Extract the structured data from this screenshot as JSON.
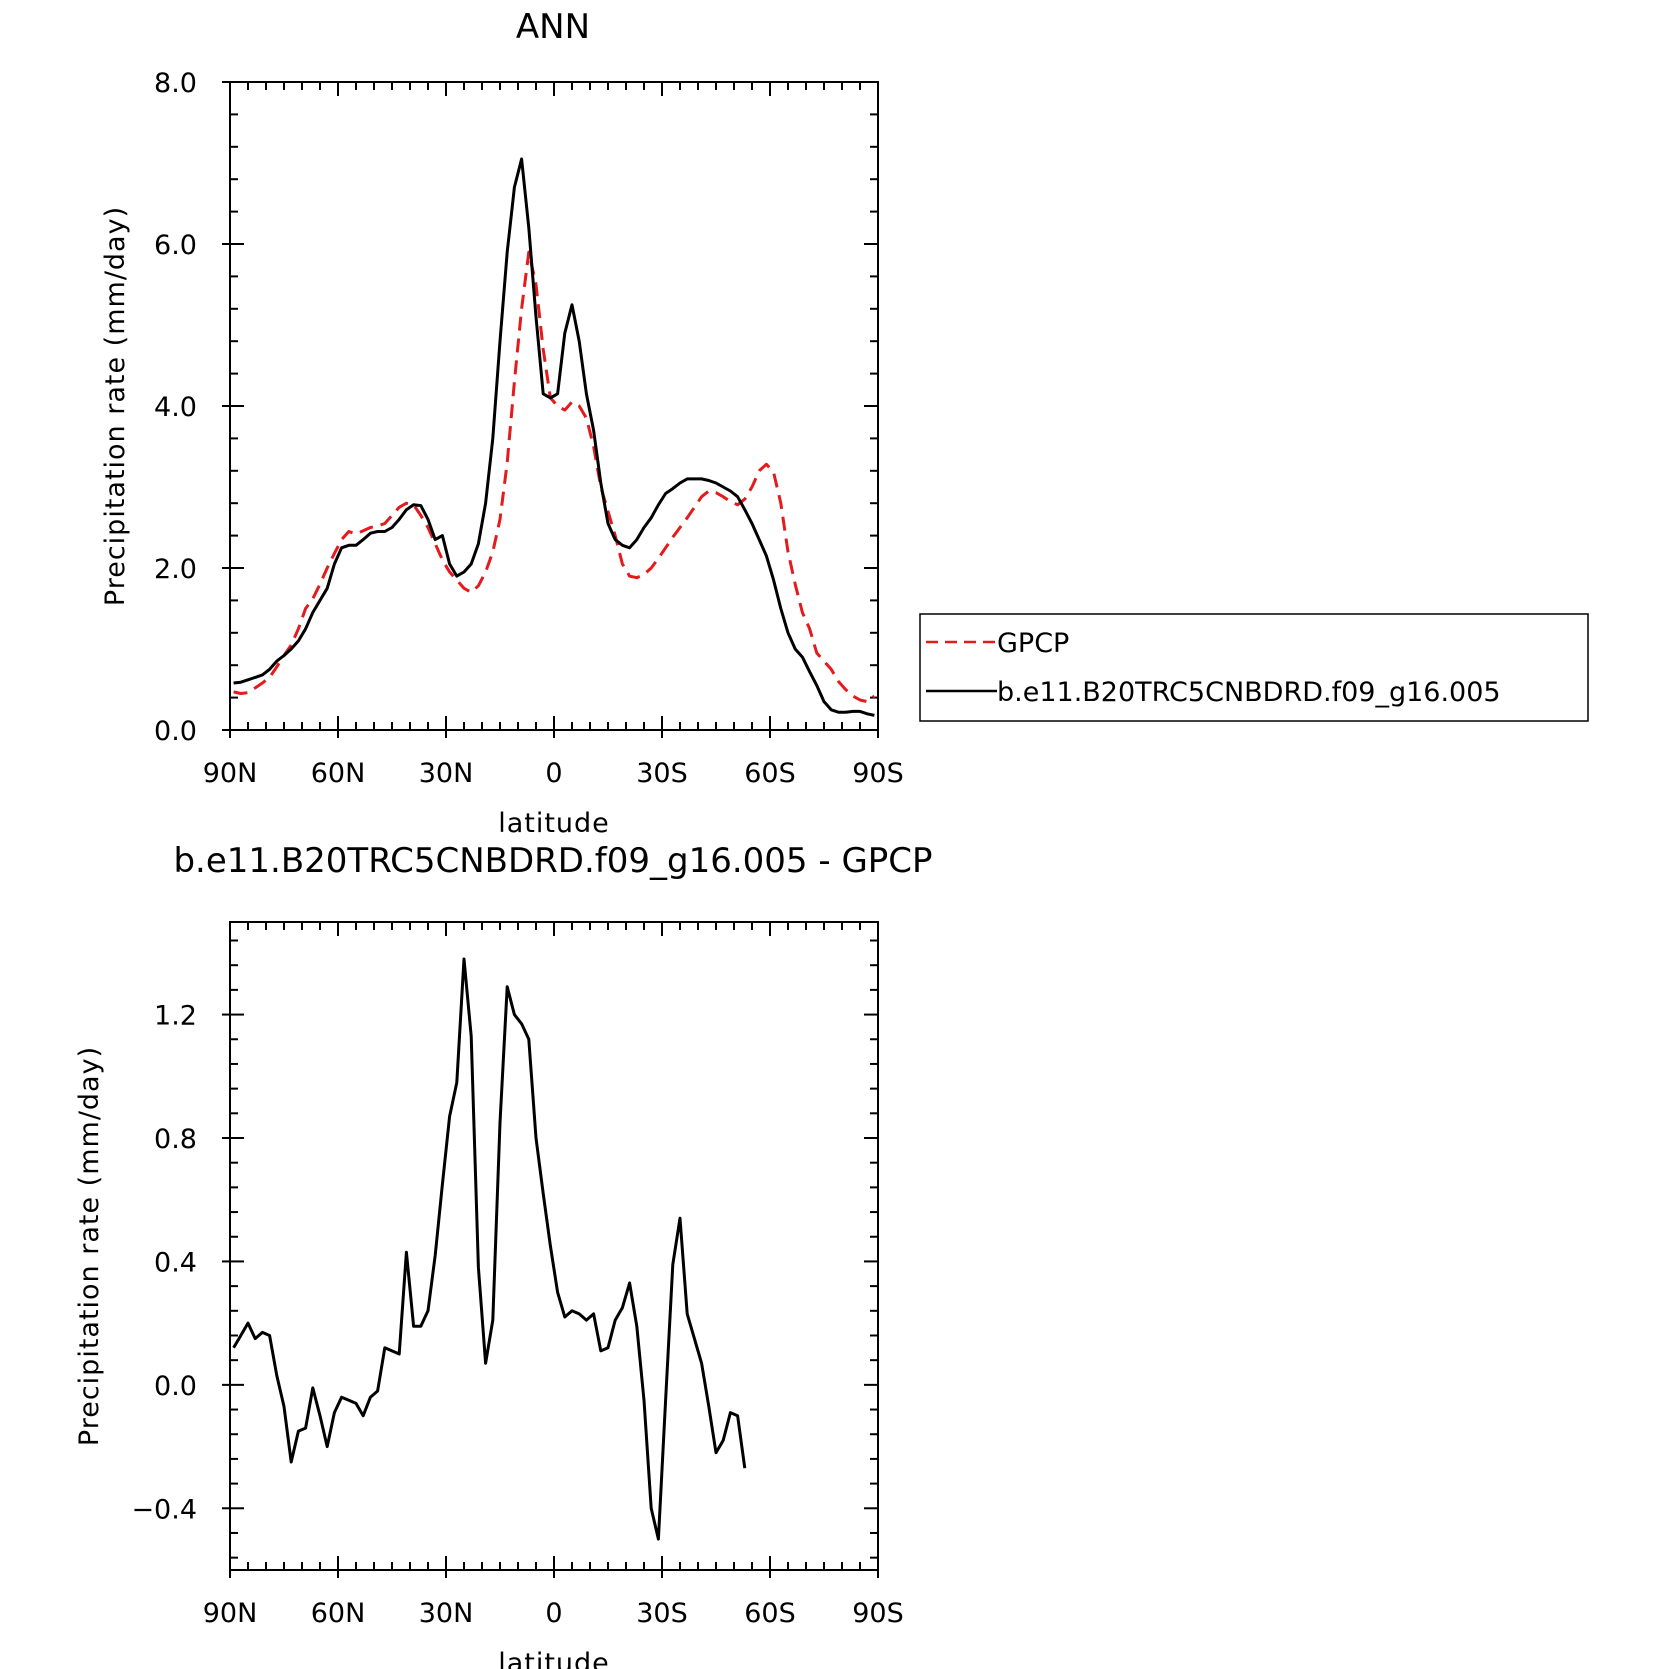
{
  "chart_data": [
    {
      "type": "line",
      "title": "ANN",
      "xlabel": "latitude",
      "ylabel": "Precipitation rate (mm/day)",
      "xlim": [
        90,
        -90
      ],
      "ylim": [
        0,
        8
      ],
      "x_ticks": [
        90,
        60,
        30,
        0,
        -30,
        -60,
        -90
      ],
      "x_tick_labels": [
        "90N",
        "60N",
        "30N",
        "0",
        "30S",
        "60S",
        "90S"
      ],
      "y_ticks": [
        0,
        2,
        4,
        6,
        8
      ],
      "y_tick_labels": [
        "0.0",
        "2.0",
        "4.0",
        "6.0",
        "8.0"
      ],
      "legend_position": "right",
      "series": [
        {
          "name": "GPCP",
          "color": "#e41a1c",
          "style": "dashed",
          "points": [
            [
              89,
              0.47
            ],
            [
              87,
              0.45
            ],
            [
              85,
              0.46
            ],
            [
              83,
              0.52
            ],
            [
              81,
              0.58
            ],
            [
              79,
              0.65
            ],
            [
              77,
              0.78
            ],
            [
              75,
              0.92
            ],
            [
              73,
              1.05
            ],
            [
              71,
              1.25
            ],
            [
              69,
              1.5
            ],
            [
              67,
              1.62
            ],
            [
              65,
              1.8
            ],
            [
              63,
              2.0
            ],
            [
              61,
              2.18
            ],
            [
              59,
              2.35
            ],
            [
              57,
              2.45
            ],
            [
              55,
              2.42
            ],
            [
              53,
              2.46
            ],
            [
              51,
              2.5
            ],
            [
              49,
              2.52
            ],
            [
              47,
              2.55
            ],
            [
              45,
              2.65
            ],
            [
              43,
              2.75
            ],
            [
              41,
              2.8
            ],
            [
              39,
              2.78
            ],
            [
              37,
              2.65
            ],
            [
              35,
              2.5
            ],
            [
              33,
              2.3
            ],
            [
              31,
              2.1
            ],
            [
              29,
              1.95
            ],
            [
              27,
              1.85
            ],
            [
              25,
              1.75
            ],
            [
              23,
              1.7
            ],
            [
              21,
              1.78
            ],
            [
              19,
              1.95
            ],
            [
              17,
              2.2
            ],
            [
              15,
              2.6
            ],
            [
              13,
              3.3
            ],
            [
              11,
              4.3
            ],
            [
              9,
              5.2
            ],
            [
              7,
              5.9
            ],
            [
              5,
              5.5
            ],
            [
              3,
              4.7
            ],
            [
              1,
              4.1
            ],
            [
              -1,
              4.0
            ],
            [
              -3,
              3.95
            ],
            [
              -5,
              4.05
            ],
            [
              -7,
              4.0
            ],
            [
              -9,
              3.85
            ],
            [
              -11,
              3.5
            ],
            [
              -13,
              3.0
            ],
            [
              -15,
              2.7
            ],
            [
              -17,
              2.4
            ],
            [
              -19,
              2.05
            ],
            [
              -21,
              1.9
            ],
            [
              -23,
              1.88
            ],
            [
              -25,
              1.92
            ],
            [
              -27,
              2.0
            ],
            [
              -29,
              2.12
            ],
            [
              -31,
              2.25
            ],
            [
              -33,
              2.38
            ],
            [
              -35,
              2.5
            ],
            [
              -37,
              2.62
            ],
            [
              -39,
              2.75
            ],
            [
              -41,
              2.88
            ],
            [
              -43,
              2.95
            ],
            [
              -45,
              2.93
            ],
            [
              -47,
              2.88
            ],
            [
              -49,
              2.82
            ],
            [
              -51,
              2.78
            ],
            [
              -53,
              2.85
            ],
            [
              -55,
              3.0
            ],
            [
              -57,
              3.2
            ],
            [
              -59,
              3.28
            ],
            [
              -61,
              3.18
            ],
            [
              -63,
              2.8
            ],
            [
              -65,
              2.2
            ],
            [
              -67,
              1.8
            ],
            [
              -69,
              1.45
            ],
            [
              -71,
              1.25
            ],
            [
              -73,
              0.95
            ],
            [
              -75,
              0.85
            ],
            [
              -77,
              0.75
            ],
            [
              -79,
              0.6
            ],
            [
              -81,
              0.5
            ],
            [
              -83,
              0.42
            ],
            [
              -85,
              0.37
            ],
            [
              -87,
              0.35
            ],
            [
              -89,
              0.42
            ]
          ]
        },
        {
          "name": "b.e11.B20TRC5CNBDRD.f09_g16.005",
          "color": "#000000",
          "style": "solid",
          "points": [
            [
              89,
              0.58
            ],
            [
              87,
              0.59
            ],
            [
              85,
              0.62
            ],
            [
              83,
              0.65
            ],
            [
              81,
              0.68
            ],
            [
              79,
              0.75
            ],
            [
              77,
              0.85
            ],
            [
              75,
              0.92
            ],
            [
              73,
              1.0
            ],
            [
              71,
              1.1
            ],
            [
              69,
              1.25
            ],
            [
              67,
              1.45
            ],
            [
              65,
              1.6
            ],
            [
              63,
              1.75
            ],
            [
              61,
              2.05
            ],
            [
              59,
              2.25
            ],
            [
              57,
              2.28
            ],
            [
              55,
              2.28
            ],
            [
              53,
              2.35
            ],
            [
              51,
              2.43
            ],
            [
              49,
              2.45
            ],
            [
              47,
              2.45
            ],
            [
              45,
              2.5
            ],
            [
              43,
              2.6
            ],
            [
              41,
              2.72
            ],
            [
              39,
              2.78
            ],
            [
              37,
              2.77
            ],
            [
              35,
              2.6
            ],
            [
              33,
              2.35
            ],
            [
              31,
              2.4
            ],
            [
              29,
              2.05
            ],
            [
              27,
              1.9
            ],
            [
              25,
              1.95
            ],
            [
              23,
              2.05
            ],
            [
              21,
              2.3
            ],
            [
              19,
              2.8
            ],
            [
              17,
              3.6
            ],
            [
              15,
              4.8
            ],
            [
              13,
              5.9
            ],
            [
              11,
              6.7
            ],
            [
              9,
              7.05
            ],
            [
              7,
              6.2
            ],
            [
              5,
              5.1
            ],
            [
              3,
              4.15
            ],
            [
              1,
              4.1
            ],
            [
              -1,
              4.15
            ],
            [
              -3,
              4.9
            ],
            [
              -5,
              5.25
            ],
            [
              -7,
              4.8
            ],
            [
              -9,
              4.15
            ],
            [
              -11,
              3.7
            ],
            [
              -13,
              3.05
            ],
            [
              -15,
              2.55
            ],
            [
              -17,
              2.35
            ],
            [
              -19,
              2.28
            ],
            [
              -21,
              2.25
            ],
            [
              -23,
              2.35
            ],
            [
              -25,
              2.5
            ],
            [
              -27,
              2.62
            ],
            [
              -29,
              2.78
            ],
            [
              -31,
              2.92
            ],
            [
              -33,
              2.98
            ],
            [
              -35,
              3.05
            ],
            [
              -37,
              3.1
            ],
            [
              -39,
              3.1
            ],
            [
              -41,
              3.1
            ],
            [
              -43,
              3.08
            ],
            [
              -45,
              3.05
            ],
            [
              -47,
              3.0
            ],
            [
              -49,
              2.95
            ],
            [
              -51,
              2.88
            ],
            [
              -53,
              2.72
            ],
            [
              -55,
              2.55
            ],
            [
              -57,
              2.35
            ],
            [
              -59,
              2.15
            ],
            [
              -61,
              1.85
            ],
            [
              -63,
              1.5
            ],
            [
              -65,
              1.2
            ],
            [
              -67,
              1.0
            ],
            [
              -69,
              0.9
            ],
            [
              -71,
              0.72
            ],
            [
              -73,
              0.55
            ],
            [
              -75,
              0.35
            ],
            [
              -77,
              0.25
            ],
            [
              -79,
              0.22
            ],
            [
              -81,
              0.22
            ],
            [
              -83,
              0.23
            ],
            [
              -85,
              0.23
            ],
            [
              -87,
              0.2
            ],
            [
              -89,
              0.18
            ]
          ]
        }
      ]
    },
    {
      "type": "line",
      "title": "b.e11.B20TRC5CNBDRD.f09_g16.005 - GPCP",
      "xlabel": "latitude",
      "ylabel": "Precipitation rate (mm/day)",
      "xlim": [
        90,
        -90
      ],
      "ylim": [
        -0.6,
        1.5
      ],
      "x_ticks": [
        90,
        60,
        30,
        0,
        -30,
        -60,
        -90
      ],
      "x_tick_labels": [
        "90N",
        "60N",
        "30N",
        "0",
        "30S",
        "60S",
        "90S"
      ],
      "y_ticks": [
        -0.4,
        0,
        0.4,
        0.8,
        1.2
      ],
      "y_tick_labels": [
        "−0.4",
        "0.0",
        "0.4",
        "0.8",
        "1.2"
      ],
      "series": [
        {
          "color": "#000000",
          "style": "solid",
          "points": [
            [
              89,
              0.12
            ],
            [
              87,
              0.16
            ],
            [
              85,
              0.2
            ],
            [
              83,
              0.15
            ],
            [
              81,
              0.17
            ],
            [
              79,
              0.16
            ],
            [
              77,
              0.03
            ],
            [
              75,
              -0.07
            ],
            [
              73,
              -0.25
            ],
            [
              71,
              -0.15
            ],
            [
              69,
              -0.14
            ],
            [
              67,
              -0.01
            ],
            [
              65,
              -0.1
            ],
            [
              63,
              -0.2
            ],
            [
              61,
              -0.09
            ],
            [
              59,
              -0.04
            ],
            [
              57,
              -0.05
            ],
            [
              55,
              -0.06
            ],
            [
              53,
              -0.1
            ],
            [
              51,
              -0.04
            ],
            [
              49,
              -0.02
            ],
            [
              47,
              0.12
            ],
            [
              45,
              0.11
            ],
            [
              43,
              0.1
            ],
            [
              41,
              0.43
            ],
            [
              39,
              0.19
            ],
            [
              37,
              0.19
            ],
            [
              35,
              0.24
            ],
            [
              33,
              0.42
            ],
            [
              31,
              0.65
            ],
            [
              29,
              0.87
            ],
            [
              27,
              0.98
            ],
            [
              25,
              1.38
            ],
            [
              23,
              1.13
            ],
            [
              21,
              0.38
            ],
            [
              19,
              0.07
            ],
            [
              17,
              0.21
            ],
            [
              15,
              0.85
            ],
            [
              13,
              1.29
            ],
            [
              11,
              1.2
            ],
            [
              9,
              1.17
            ],
            [
              7,
              1.12
            ],
            [
              5,
              0.8
            ],
            [
              3,
              0.62
            ],
            [
              1,
              0.45
            ],
            [
              -1,
              0.3
            ],
            [
              -3,
              0.22
            ],
            [
              -5,
              0.24
            ],
            [
              -7,
              0.23
            ],
            [
              -9,
              0.21
            ],
            [
              -11,
              0.23
            ],
            [
              -13,
              0.11
            ],
            [
              -15,
              0.12
            ],
            [
              -17,
              0.21
            ],
            [
              -19,
              0.25
            ],
            [
              -21,
              0.33
            ],
            [
              -23,
              0.19
            ],
            [
              -25,
              -0.05
            ],
            [
              -27,
              -0.4
            ],
            [
              -29,
              -0.5
            ],
            [
              -31,
              -0.05
            ],
            [
              -33,
              0.39
            ],
            [
              -35,
              0.54
            ],
            [
              -37,
              0.23
            ],
            [
              -39,
              0.15
            ],
            [
              -41,
              0.07
            ],
            [
              -43,
              -0.07
            ],
            [
              -45,
              -0.22
            ],
            [
              -47,
              -0.18
            ],
            [
              -49,
              -0.09
            ],
            [
              -51,
              -0.1
            ],
            [
              -53,
              -0.27
            ]
          ]
        }
      ]
    }
  ]
}
